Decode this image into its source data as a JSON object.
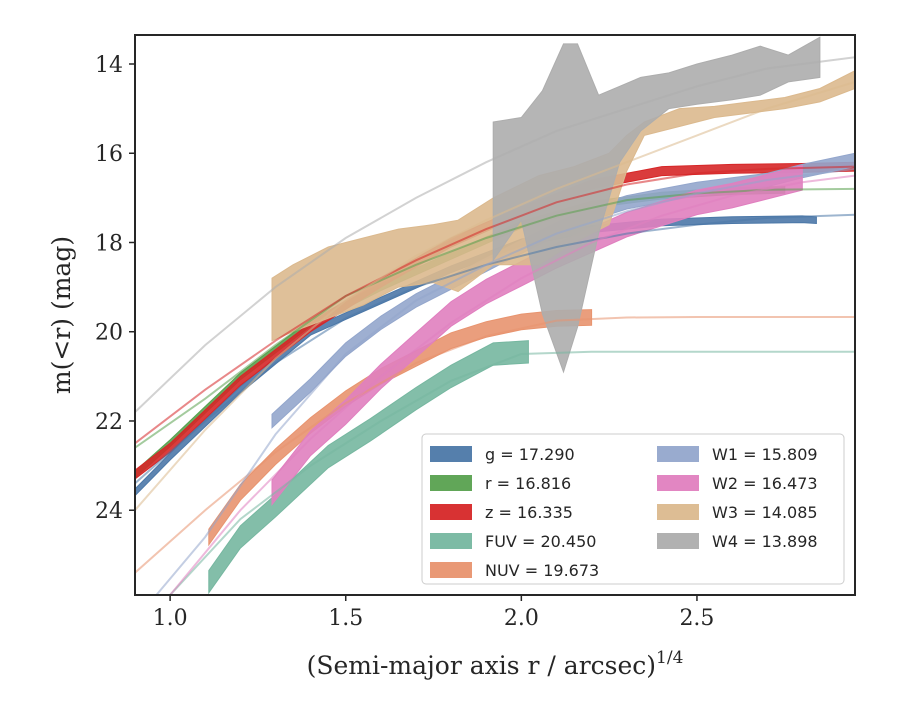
{
  "chart_data": {
    "type": "area",
    "xlabel": "(Semi-major axis r / arcsec)",
    "xlabel_superscript": "1/4",
    "ylabel": "m(<r) (mag)",
    "xlim": [
      0.9,
      2.95
    ],
    "ylim": [
      25.9,
      13.35
    ],
    "y_inverted": true,
    "grid": false,
    "legend_position": "lower-right",
    "x_ticks": [
      1.0,
      1.5,
      2.0,
      2.5
    ],
    "x_tick_labels": [
      "1.0",
      "1.5",
      "2.0",
      "2.5"
    ],
    "y_ticks": [
      14,
      16,
      18,
      20,
      22,
      24
    ],
    "y_tick_labels": [
      "14",
      "16",
      "18",
      "20",
      "22",
      "24"
    ],
    "series": [
      {
        "name": "g = 17.290",
        "band": "g",
        "value": "17.290",
        "color": "#4c78a8",
        "data_band": {
          "x": [
            0.9,
            1.0,
            1.2,
            1.4,
            1.6,
            1.8,
            2.0,
            2.2,
            2.4,
            2.6,
            2.8,
            2.84
          ],
          "y": [
            23.6,
            22.8,
            21.3,
            20.0,
            19.3,
            18.6,
            18.0,
            17.7,
            17.55,
            17.5,
            17.48,
            17.5
          ],
          "width": 0.15
        },
        "model": {
          "x": [
            0.9,
            1.1,
            1.3,
            1.5,
            1.7,
            1.9,
            2.1,
            2.3,
            2.5,
            2.7,
            2.95
          ],
          "y": [
            23.4,
            22.0,
            20.7,
            19.7,
            19.0,
            18.5,
            18.1,
            17.8,
            17.6,
            17.45,
            17.38
          ]
        }
      },
      {
        "name": "r = 16.816",
        "band": "r",
        "value": "16.816",
        "color": "#59a14f",
        "data_band": {
          "x": [
            0.9,
            1.0,
            1.2,
            1.4,
            1.6,
            1.8,
            2.0,
            2.2,
            2.4,
            2.6,
            2.75
          ],
          "y": [
            23.2,
            22.5,
            21.0,
            19.8,
            19.0,
            18.3,
            17.6,
            17.15,
            16.95,
            16.85,
            16.82
          ],
          "width": 0.15
        },
        "model": {
          "x": [
            0.9,
            1.1,
            1.3,
            1.5,
            1.7,
            1.9,
            2.1,
            2.3,
            2.5,
            2.7,
            2.95
          ],
          "y": [
            22.6,
            21.5,
            20.3,
            19.2,
            18.5,
            17.9,
            17.4,
            17.05,
            16.9,
            16.82,
            16.8
          ]
        }
      },
      {
        "name": "z = 16.335",
        "band": "z",
        "value": "16.335",
        "color": "#d62728",
        "data_band": {
          "x": [
            0.9,
            1.0,
            1.2,
            1.4,
            1.6,
            1.8,
            2.0,
            2.2,
            2.4,
            2.6,
            2.8,
            2.95
          ],
          "y": [
            23.2,
            22.6,
            21.1,
            19.9,
            18.9,
            18.0,
            17.3,
            16.7,
            16.4,
            16.35,
            16.33,
            16.3
          ],
          "width": 0.2
        },
        "model": {
          "x": [
            0.9,
            1.1,
            1.3,
            1.5,
            1.7,
            1.9,
            2.1,
            2.3,
            2.5,
            2.7,
            2.95
          ],
          "y": [
            22.5,
            21.3,
            20.2,
            19.2,
            18.4,
            17.7,
            17.1,
            16.7,
            16.45,
            16.35,
            16.3
          ]
        }
      },
      {
        "name": "FUV = 20.450",
        "band": "FUV",
        "value": "20.450",
        "color": "#76b7a0",
        "data_band": {
          "x": [
            1.11,
            1.2,
            1.3,
            1.45,
            1.57,
            1.7,
            1.8,
            1.92,
            2.02
          ],
          "y": [
            25.6,
            24.6,
            23.9,
            22.8,
            22.2,
            21.5,
            21.0,
            20.5,
            20.45
          ],
          "width": 0.5
        },
        "model": {
          "x": [
            0.9,
            1.0,
            1.2,
            1.4,
            1.6,
            1.8,
            2.0,
            2.2,
            2.5,
            2.95
          ],
          "y": [
            27.5,
            25.9,
            24.2,
            23.0,
            22.0,
            21.1,
            20.5,
            20.45,
            20.45,
            20.45
          ]
        }
      },
      {
        "name": "NUV = 19.673",
        "band": "NUV",
        "value": "19.673",
        "color": "#e8946f",
        "data_band": {
          "x": [
            1.11,
            1.2,
            1.3,
            1.4,
            1.5,
            1.6,
            1.7,
            1.8,
            1.9,
            2.0,
            2.1,
            2.2
          ],
          "y": [
            24.6,
            23.6,
            22.8,
            22.1,
            21.5,
            21.0,
            20.6,
            20.2,
            19.95,
            19.78,
            19.7,
            19.68
          ],
          "width": 0.35
        },
        "model": {
          "x": [
            0.9,
            1.1,
            1.3,
            1.5,
            1.7,
            1.9,
            2.1,
            2.3,
            2.5,
            2.95
          ],
          "y": [
            25.4,
            24.0,
            22.7,
            21.6,
            20.7,
            20.1,
            19.75,
            19.68,
            19.67,
            19.67
          ]
        }
      },
      {
        "name": "W1 = 15.809",
        "band": "W1",
        "value": "15.809",
        "color": "#93a6cc",
        "data_band": {
          "x": [
            1.29,
            1.4,
            1.5,
            1.6,
            1.7,
            1.8,
            1.9,
            2.0,
            2.1,
            2.2,
            2.3,
            2.4,
            2.5,
            2.6,
            2.7,
            2.8,
            2.95
          ],
          "y": [
            22.0,
            21.2,
            20.4,
            19.8,
            19.3,
            18.9,
            18.5,
            18.1,
            17.7,
            17.35,
            17.1,
            16.95,
            16.8,
            16.7,
            16.6,
            16.4,
            16.15
          ],
          "width": 0.3
        },
        "model": {
          "x": [
            0.95,
            1.1,
            1.3,
            1.5,
            1.7,
            1.9,
            2.1,
            2.3,
            2.5,
            2.7,
            2.95
          ],
          "y": [
            26.0,
            24.6,
            22.3,
            20.5,
            19.3,
            18.5,
            17.8,
            17.3,
            16.9,
            16.6,
            16.35
          ]
        }
      },
      {
        "name": "W2 = 16.473",
        "band": "W2",
        "value": "16.473",
        "color": "#e07fbf",
        "data_band": {
          "x": [
            1.29,
            1.4,
            1.5,
            1.6,
            1.7,
            1.8,
            1.9,
            2.0,
            2.1,
            2.2,
            2.3,
            2.4,
            2.5,
            2.6,
            2.7,
            2.8
          ],
          "y": [
            23.6,
            22.5,
            21.8,
            21.0,
            20.3,
            19.6,
            19.1,
            18.7,
            18.3,
            17.95,
            17.6,
            17.35,
            17.1,
            16.95,
            16.75,
            16.55
          ],
          "width": 0.55
        },
        "model": {
          "x": [
            1.0,
            1.2,
            1.4,
            1.6,
            1.8,
            2.0,
            2.2,
            2.4,
            2.6,
            2.8,
            2.95
          ],
          "y": [
            25.9,
            24.0,
            22.4,
            21.0,
            19.8,
            18.8,
            18.0,
            17.4,
            16.95,
            16.65,
            16.5
          ]
        }
      },
      {
        "name": "W3 = 14.085",
        "band": "W3",
        "value": "14.085",
        "color": "#dbb98e",
        "data_band": {
          "x": [
            1.29,
            1.35,
            1.45,
            1.55,
            1.65,
            1.75,
            1.82,
            1.92,
            2.05,
            2.15,
            2.25,
            2.3,
            2.35,
            2.45,
            2.55,
            2.65,
            2.75,
            2.85,
            2.95
          ],
          "y_top": [
            18.8,
            18.5,
            18.1,
            17.9,
            17.7,
            17.6,
            17.5,
            17.0,
            16.5,
            16.3,
            16.0,
            15.6,
            15.3,
            15.0,
            14.95,
            14.85,
            14.75,
            14.55,
            14.15
          ],
          "y_bottom": [
            20.2,
            20.0,
            19.7,
            19.4,
            19.0,
            18.9,
            19.1,
            18.5,
            18.5,
            18.0,
            17.6,
            16.4,
            15.6,
            15.4,
            15.2,
            15.1,
            15.0,
            14.85,
            14.55
          ]
        },
        "model": {
          "x": [
            0.9,
            1.1,
            1.3,
            1.5,
            1.7,
            1.9,
            2.1,
            2.3,
            2.5,
            2.7,
            2.95
          ],
          "y": [
            24.0,
            22.2,
            20.6,
            19.3,
            18.3,
            17.5,
            16.8,
            16.2,
            15.6,
            15.0,
            14.4
          ]
        }
      },
      {
        "name": "W4 = 13.898",
        "band": "W4",
        "value": "13.898",
        "color": "#adadad",
        "data_band": {
          "x": [
            1.92,
            2.0,
            2.06,
            2.12,
            2.16,
            2.22,
            2.28,
            2.34,
            2.42,
            2.5,
            2.6,
            2.68,
            2.76,
            2.85
          ],
          "y_top": [
            15.3,
            15.2,
            14.6,
            13.55,
            13.55,
            14.7,
            14.5,
            14.3,
            14.2,
            14.0,
            13.8,
            13.6,
            13.8,
            13.4
          ],
          "y_bottom": [
            18.4,
            17.5,
            19.6,
            20.9,
            19.9,
            17.8,
            16.2,
            15.5,
            15.0,
            14.9,
            14.8,
            14.7,
            14.4,
            14.3
          ]
        },
        "model": {
          "x": [
            0.9,
            1.1,
            1.3,
            1.5,
            1.7,
            1.9,
            2.1,
            2.3,
            2.5,
            2.7,
            2.95
          ],
          "y": [
            21.8,
            20.3,
            19.0,
            17.9,
            17.0,
            16.2,
            15.5,
            15.0,
            14.5,
            14.1,
            13.85
          ]
        }
      }
    ]
  }
}
